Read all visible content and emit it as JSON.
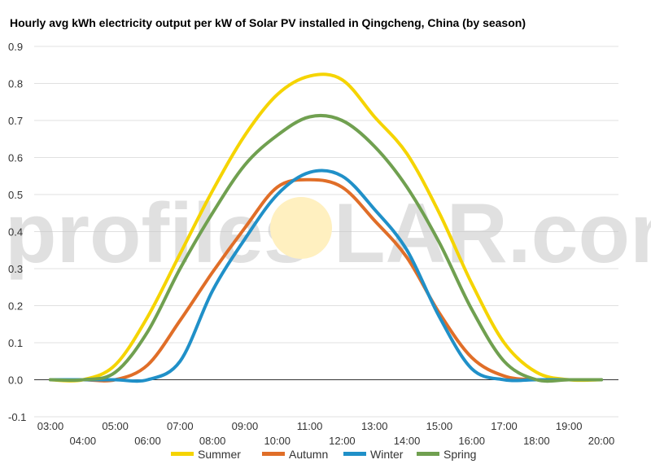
{
  "watermark": {
    "left": "profiles",
    "right": "LAR.com",
    "sun_color": "#fff0c0"
  },
  "chart_data": {
    "type": "line",
    "title": "Hourly avg kWh electricity output per kW of Solar PV installed in Qingcheng, China (by season)",
    "xlabel": "",
    "ylabel": "",
    "ylim": [
      -0.1,
      0.9
    ],
    "yticks": [
      "0.9",
      "0.8",
      "0.7",
      "0.6",
      "0.5",
      "0.4",
      "0.3",
      "0.2",
      "0.1",
      "0.0",
      "-0.1"
    ],
    "categories": [
      "03:00",
      "04:00",
      "05:00",
      "06:00",
      "07:00",
      "08:00",
      "09:00",
      "10:00",
      "11:00",
      "12:00",
      "13:00",
      "14:00",
      "15:00",
      "16:00",
      "17:00",
      "18:00",
      "19:00",
      "20:00"
    ],
    "grid": true,
    "legend": "bottom",
    "series": [
      {
        "name": "Summer",
        "color": "#f5d400",
        "values": [
          0.0,
          0.0,
          0.04,
          0.17,
          0.34,
          0.51,
          0.66,
          0.77,
          0.82,
          0.81,
          0.71,
          0.61,
          0.45,
          0.26,
          0.1,
          0.02,
          0.0,
          0.0
        ]
      },
      {
        "name": "Autumn",
        "color": "#e06e28",
        "values": [
          0.0,
          0.0,
          0.0,
          0.04,
          0.16,
          0.29,
          0.41,
          0.52,
          0.54,
          0.52,
          0.43,
          0.33,
          0.18,
          0.06,
          0.01,
          0.0,
          0.0,
          0.0
        ]
      },
      {
        "name": "Winter",
        "color": "#2090c8",
        "values": [
          0.0,
          0.0,
          0.0,
          0.0,
          0.05,
          0.24,
          0.38,
          0.5,
          0.56,
          0.55,
          0.46,
          0.35,
          0.17,
          0.03,
          0.0,
          0.0,
          0.0,
          0.0
        ]
      },
      {
        "name": "Spring",
        "color": "#70a050",
        "values": [
          0.0,
          0.0,
          0.02,
          0.13,
          0.3,
          0.45,
          0.58,
          0.66,
          0.71,
          0.7,
          0.63,
          0.52,
          0.37,
          0.19,
          0.05,
          0.0,
          0.0,
          0.0
        ]
      }
    ]
  }
}
